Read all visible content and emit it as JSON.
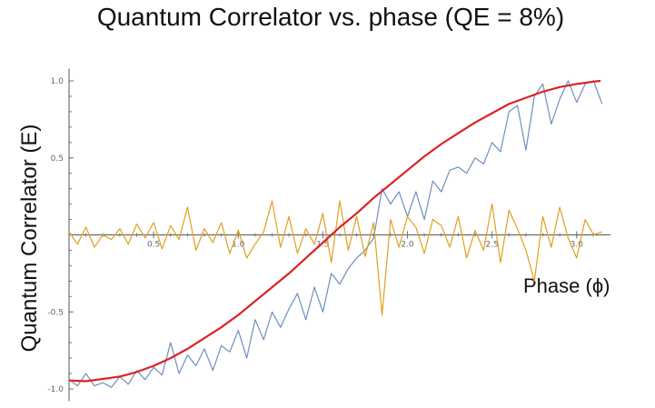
{
  "chart_data": {
    "type": "line",
    "title": "Quantum Correlator vs. phase (QE = 8%)",
    "xlabel": "Phase (ϕ)",
    "ylabel": "Quantum Correlator (E)",
    "xlim": [
      0.0,
      3.2
    ],
    "ylim": [
      -1.08,
      1.08
    ],
    "x_ticks": [
      0.5,
      1.0,
      1.5,
      2.0,
      2.5,
      3.0
    ],
    "x_tick_labels": [
      "0.5",
      "1.0",
      "1.5",
      "2.0",
      "2.5",
      "3.0"
    ],
    "y_ticks": [
      -1.0,
      -0.5,
      0.5,
      1.0
    ],
    "y_tick_labels": [
      "-1.0",
      "-0.5",
      "0.5",
      "1.0"
    ],
    "grid": false,
    "series": [
      {
        "color": "#6f8fbf",
        "x": [
          0.0,
          0.05,
          0.1,
          0.15,
          0.2,
          0.25,
          0.3,
          0.35,
          0.4,
          0.45,
          0.5,
          0.55,
          0.6,
          0.65,
          0.7,
          0.75,
          0.8,
          0.85,
          0.9,
          0.95,
          1.0,
          1.05,
          1.1,
          1.15,
          1.2,
          1.25,
          1.3,
          1.35,
          1.4,
          1.45,
          1.5,
          1.55,
          1.6,
          1.65,
          1.7,
          1.75,
          1.8,
          1.85,
          1.9,
          1.95,
          2.0,
          2.05,
          2.1,
          2.15,
          2.2,
          2.25,
          2.3,
          2.35,
          2.4,
          2.45,
          2.5,
          2.55,
          2.6,
          2.65,
          2.7,
          2.75,
          2.8,
          2.85,
          2.9,
          2.95,
          3.0,
          3.05,
          3.1,
          3.15
        ],
        "values": [
          -0.94,
          -0.98,
          -0.9,
          -0.98,
          -0.96,
          -0.99,
          -0.92,
          -0.97,
          -0.88,
          -0.94,
          -0.86,
          -0.91,
          -0.7,
          -0.9,
          -0.78,
          -0.85,
          -0.74,
          -0.88,
          -0.72,
          -0.76,
          -0.62,
          -0.8,
          -0.55,
          -0.68,
          -0.5,
          -0.6,
          -0.48,
          -0.38,
          -0.55,
          -0.34,
          -0.5,
          -0.25,
          -0.32,
          -0.22,
          -0.15,
          -0.1,
          -0.02,
          0.3,
          0.2,
          0.28,
          0.12,
          0.28,
          0.1,
          0.35,
          0.28,
          0.42,
          0.44,
          0.4,
          0.5,
          0.46,
          0.6,
          0.54,
          0.8,
          0.84,
          0.55,
          0.9,
          0.98,
          0.72,
          0.88,
          1.0,
          0.86,
          0.98,
          1.0,
          0.85
        ]
      },
      {
        "color": "#e0a020",
        "x": [
          0.0,
          0.05,
          0.1,
          0.15,
          0.2,
          0.25,
          0.3,
          0.35,
          0.4,
          0.45,
          0.5,
          0.55,
          0.6,
          0.65,
          0.7,
          0.75,
          0.8,
          0.85,
          0.9,
          0.95,
          1.0,
          1.05,
          1.1,
          1.15,
          1.2,
          1.25,
          1.3,
          1.35,
          1.4,
          1.45,
          1.5,
          1.55,
          1.6,
          1.65,
          1.7,
          1.75,
          1.8,
          1.85,
          1.9,
          1.95,
          2.0,
          2.05,
          2.1,
          2.15,
          2.2,
          2.25,
          2.3,
          2.35,
          2.4,
          2.45,
          2.5,
          2.55,
          2.6,
          2.65,
          2.7,
          2.75,
          2.8,
          2.85,
          2.9,
          2.95,
          3.0,
          3.05,
          3.1,
          3.15
        ],
        "values": [
          0.02,
          -0.06,
          0.05,
          -0.08,
          0.0,
          -0.03,
          0.04,
          -0.06,
          0.07,
          -0.02,
          0.08,
          -0.09,
          0.06,
          -0.03,
          0.18,
          -0.1,
          0.04,
          -0.05,
          0.08,
          -0.12,
          0.03,
          -0.15,
          -0.06,
          0.02,
          0.22,
          -0.08,
          0.12,
          -0.12,
          0.04,
          -0.06,
          0.14,
          -0.18,
          0.22,
          -0.1,
          0.12,
          -0.14,
          0.08,
          -0.52,
          0.1,
          -0.08,
          0.12,
          0.05,
          -0.12,
          0.1,
          0.06,
          -0.08,
          0.12,
          -0.15,
          0.03,
          -0.1,
          0.2,
          -0.18,
          0.16,
          0.04,
          -0.1,
          -0.3,
          0.12,
          -0.08,
          0.18,
          -0.02,
          -0.15,
          0.1,
          0.0,
          0.02
        ]
      },
      {
        "color": "#dd2222",
        "x": [
          0.0,
          0.1,
          0.2,
          0.3,
          0.4,
          0.5,
          0.6,
          0.7,
          0.8,
          0.9,
          1.0,
          1.1,
          1.2,
          1.3,
          1.4,
          1.5,
          1.6,
          1.7,
          1.8,
          1.9,
          2.0,
          2.1,
          2.2,
          2.3,
          2.4,
          2.5,
          2.6,
          2.7,
          2.8,
          2.9,
          3.0,
          3.1,
          3.1416
        ],
        "values": [
          -0.945,
          -0.95,
          -0.935,
          -0.92,
          -0.89,
          -0.85,
          -0.8,
          -0.74,
          -0.67,
          -0.6,
          -0.52,
          -0.43,
          -0.34,
          -0.25,
          -0.15,
          -0.05,
          0.05,
          0.14,
          0.24,
          0.33,
          0.42,
          0.51,
          0.59,
          0.66,
          0.73,
          0.79,
          0.85,
          0.89,
          0.93,
          0.96,
          0.98,
          0.995,
          1.0
        ]
      }
    ]
  }
}
